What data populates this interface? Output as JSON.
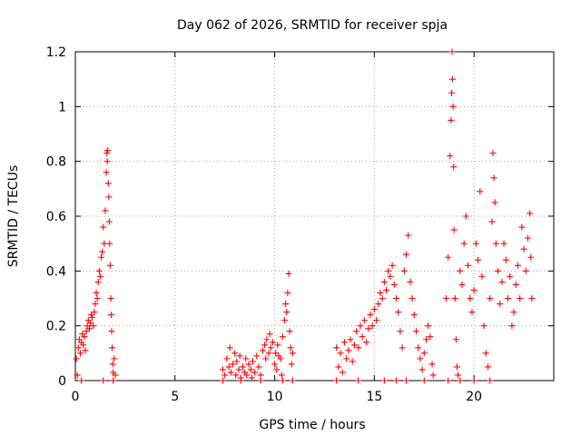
{
  "chart_data": {
    "type": "scatter",
    "title": "Day 062 of 2026, SRMTID for receiver spja",
    "xlabel": "GPS time / hours",
    "ylabel": "SRMTID / TECUs",
    "xlim": [
      0,
      24
    ],
    "ylim": [
      0,
      1.2
    ],
    "x_ticks": [
      0,
      5,
      10,
      15,
      20
    ],
    "x_tick_labels": [
      "0",
      "5",
      "10",
      "15",
      "20"
    ],
    "y_ticks": [
      0,
      0.2,
      0.4,
      0.6,
      0.8,
      1.0,
      1.2
    ],
    "y_tick_labels": [
      "0",
      "0.2",
      "0.4",
      "0.6",
      "0.8",
      "1",
      "1.2"
    ],
    "grid": true,
    "marker": "+",
    "series": [
      {
        "name": "SRMTID",
        "color": "#ff0000",
        "points": [
          [
            0.05,
            0.08
          ],
          [
            0.1,
            0.02
          ],
          [
            0.15,
            0.12
          ],
          [
            0.2,
            0.15
          ],
          [
            0.25,
            0.1
          ],
          [
            0.3,
            0.14
          ],
          [
            0.35,
            0.17
          ],
          [
            0.4,
            0.13
          ],
          [
            0.45,
            0.16
          ],
          [
            0.5,
            0.11
          ],
          [
            0.55,
            0.18
          ],
          [
            0.6,
            0.2
          ],
          [
            0.65,
            0.22
          ],
          [
            0.7,
            0.19
          ],
          [
            0.75,
            0.21
          ],
          [
            0.8,
            0.24
          ],
          [
            0.85,
            0.23
          ],
          [
            0.9,
            0.2
          ],
          [
            0.95,
            0.25
          ],
          [
            1.0,
            0.28
          ],
          [
            1.05,
            0.32
          ],
          [
            1.1,
            0.3
          ],
          [
            1.15,
            0.36
          ],
          [
            1.2,
            0.4
          ],
          [
            1.25,
            0.38
          ],
          [
            1.3,
            0.45
          ],
          [
            1.35,
            0.47
          ],
          [
            1.4,
            0.56
          ],
          [
            1.45,
            0.5
          ],
          [
            1.5,
            0.62
          ],
          [
            1.55,
            0.76
          ],
          [
            1.58,
            0.83
          ],
          [
            1.6,
            0.8
          ],
          [
            1.62,
            0.84
          ],
          [
            1.65,
            0.72
          ],
          [
            1.68,
            0.67
          ],
          [
            1.7,
            0.58
          ],
          [
            1.72,
            0.5
          ],
          [
            1.75,
            0.42
          ],
          [
            1.78,
            0.3
          ],
          [
            1.8,
            0.24
          ],
          [
            1.82,
            0.18
          ],
          [
            1.85,
            0.12
          ],
          [
            1.88,
            0.06
          ],
          [
            1.9,
            0.03
          ],
          [
            1.95,
            0.08
          ],
          [
            2.0,
            0.02
          ],
          [
            0.3,
            0.0
          ],
          [
            1.4,
            0.0
          ],
          [
            1.9,
            0.0
          ],
          [
            7.4,
            0.04
          ],
          [
            7.5,
            0.02
          ],
          [
            7.6,
            0.08
          ],
          [
            7.7,
            0.05
          ],
          [
            7.75,
            0.12
          ],
          [
            7.8,
            0.03
          ],
          [
            7.9,
            0.06
          ],
          [
            8.0,
            0.1
          ],
          [
            8.05,
            0.02
          ],
          [
            8.1,
            0.07
          ],
          [
            8.2,
            0.04
          ],
          [
            8.25,
            0.09
          ],
          [
            8.3,
            0.01
          ],
          [
            8.4,
            0.05
          ],
          [
            8.5,
            0.03
          ],
          [
            8.55,
            0.08
          ],
          [
            8.6,
            0.02
          ],
          [
            8.7,
            0.06
          ],
          [
            8.8,
            0.04
          ],
          [
            8.85,
            0.01
          ],
          [
            8.9,
            0.07
          ],
          [
            9.0,
            0.03
          ],
          [
            9.1,
            0.09
          ],
          [
            9.2,
            0.05
          ],
          [
            9.3,
            0.02
          ],
          [
            9.4,
            0.11
          ],
          [
            9.5,
            0.13
          ],
          [
            9.55,
            0.08
          ],
          [
            9.6,
            0.15
          ],
          [
            9.7,
            0.1
          ],
          [
            9.75,
            0.17
          ],
          [
            9.8,
            0.12
          ],
          [
            9.9,
            0.14
          ],
          [
            10.0,
            0.06
          ],
          [
            10.05,
            0.1
          ],
          [
            10.1,
            0.04
          ],
          [
            10.15,
            0.13
          ],
          [
            10.2,
            0.09
          ],
          [
            10.3,
            0.08
          ],
          [
            10.35,
            0.02
          ],
          [
            10.4,
            0.16
          ],
          [
            10.5,
            0.22
          ],
          [
            10.55,
            0.28
          ],
          [
            10.6,
            0.25
          ],
          [
            10.65,
            0.32
          ],
          [
            10.7,
            0.39
          ],
          [
            10.75,
            0.18
          ],
          [
            10.8,
            0.12
          ],
          [
            10.85,
            0.06
          ],
          [
            10.9,
            0.1
          ],
          [
            7.4,
            0.0
          ],
          [
            8.3,
            0.0
          ],
          [
            9.3,
            0.0
          ],
          [
            10.4,
            0.0
          ],
          [
            10.9,
            0.0
          ],
          [
            13.1,
            0.12
          ],
          [
            13.2,
            0.05
          ],
          [
            13.3,
            0.1
          ],
          [
            13.4,
            0.03
          ],
          [
            13.5,
            0.14
          ],
          [
            13.6,
            0.08
          ],
          [
            13.7,
            0.11
          ],
          [
            13.8,
            0.15
          ],
          [
            13.9,
            0.07
          ],
          [
            14.0,
            0.13
          ],
          [
            14.1,
            0.18
          ],
          [
            14.2,
            0.12
          ],
          [
            14.3,
            0.2
          ],
          [
            14.4,
            0.16
          ],
          [
            14.5,
            0.22
          ],
          [
            14.6,
            0.14
          ],
          [
            14.7,
            0.19
          ],
          [
            14.8,
            0.24
          ],
          [
            14.9,
            0.2
          ],
          [
            15.0,
            0.26
          ],
          [
            15.1,
            0.22
          ],
          [
            15.2,
            0.28
          ],
          [
            15.3,
            0.32
          ],
          [
            15.4,
            0.3
          ],
          [
            15.5,
            0.36
          ],
          [
            15.6,
            0.33
          ],
          [
            15.7,
            0.4
          ],
          [
            15.8,
            0.38
          ],
          [
            15.9,
            0.42
          ],
          [
            16.0,
            0.35
          ],
          [
            16.1,
            0.3
          ],
          [
            16.2,
            0.25
          ],
          [
            16.3,
            0.18
          ],
          [
            16.4,
            0.12
          ],
          [
            16.5,
            0.4
          ],
          [
            16.6,
            0.46
          ],
          [
            16.7,
            0.53
          ],
          [
            16.8,
            0.36
          ],
          [
            16.9,
            0.3
          ],
          [
            17.0,
            0.24
          ],
          [
            17.1,
            0.18
          ],
          [
            17.2,
            0.12
          ],
          [
            17.3,
            0.08
          ],
          [
            17.4,
            0.04
          ],
          [
            17.5,
            0.1
          ],
          [
            17.6,
            0.15
          ],
          [
            17.7,
            0.2
          ],
          [
            17.8,
            0.16
          ],
          [
            17.9,
            0.06
          ],
          [
            17.95,
            0.02
          ],
          [
            13.1,
            0.0
          ],
          [
            14.2,
            0.0
          ],
          [
            15.5,
            0.0
          ],
          [
            16.1,
            0.0
          ],
          [
            16.6,
            0.0
          ],
          [
            17.5,
            0.0
          ],
          [
            18.6,
            0.3
          ],
          [
            18.7,
            0.45
          ],
          [
            18.8,
            0.82
          ],
          [
            18.85,
            0.95
          ],
          [
            18.88,
            1.05
          ],
          [
            18.9,
            1.2
          ],
          [
            18.92,
            1.1
          ],
          [
            18.95,
            1.0
          ],
          [
            18.98,
            0.78
          ],
          [
            19.0,
            0.55
          ],
          [
            19.05,
            0.3
          ],
          [
            19.1,
            0.15
          ],
          [
            19.15,
            0.05
          ],
          [
            19.2,
            0.02
          ],
          [
            19.3,
            0.4
          ],
          [
            19.4,
            0.35
          ],
          [
            19.5,
            0.5
          ],
          [
            19.6,
            0.6
          ],
          [
            19.7,
            0.42
          ],
          [
            19.8,
            0.3
          ],
          [
            19.9,
            0.25
          ],
          [
            20.0,
            0.33
          ],
          [
            20.1,
            0.5
          ],
          [
            20.2,
            0.44
          ],
          [
            20.3,
            0.69
          ],
          [
            20.4,
            0.38
          ],
          [
            20.5,
            0.2
          ],
          [
            20.6,
            0.1
          ],
          [
            20.7,
            0.05
          ],
          [
            20.8,
            0.3
          ],
          [
            20.9,
            0.58
          ],
          [
            20.95,
            0.83
          ],
          [
            21.0,
            0.74
          ],
          [
            21.05,
            0.65
          ],
          [
            21.1,
            0.5
          ],
          [
            21.2,
            0.4
          ],
          [
            21.3,
            0.28
          ],
          [
            21.4,
            0.36
          ],
          [
            21.5,
            0.5
          ],
          [
            21.6,
            0.44
          ],
          [
            21.7,
            0.3
          ],
          [
            21.8,
            0.38
          ],
          [
            21.9,
            0.2
          ],
          [
            22.0,
            0.25
          ],
          [
            22.1,
            0.35
          ],
          [
            22.2,
            0.42
          ],
          [
            22.3,
            0.3
          ],
          [
            22.4,
            0.56
          ],
          [
            22.5,
            0.48
          ],
          [
            22.6,
            0.4
          ],
          [
            22.7,
            0.52
          ],
          [
            22.8,
            0.61
          ],
          [
            22.85,
            0.45
          ],
          [
            22.9,
            0.3
          ],
          [
            18.7,
            0.0
          ],
          [
            19.3,
            0.0
          ],
          [
            20.0,
            0.0
          ],
          [
            20.8,
            0.0
          ]
        ]
      }
    ]
  }
}
